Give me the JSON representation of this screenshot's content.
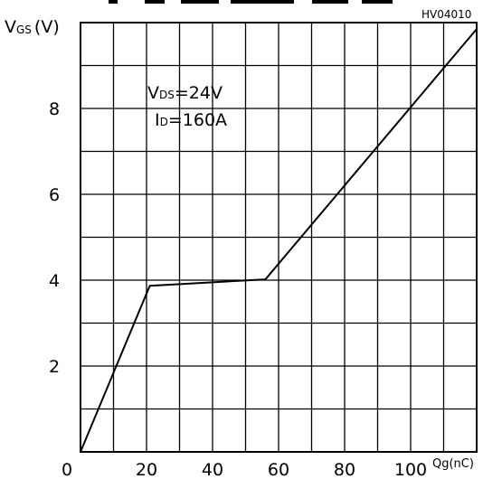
{
  "chart_data": {
    "type": "line",
    "code": "HV04010",
    "y_axis": {
      "symbol": "V",
      "subscript": "GS",
      "unit": "(V)"
    },
    "x_axis": {
      "unit": "Qg(nC)"
    },
    "xlim": [
      0,
      120
    ],
    "ylim": [
      0,
      10
    ],
    "x_grid_step": 10,
    "y_grid_step": 1,
    "x_ticks": [
      {
        "value": 0,
        "label": "0"
      },
      {
        "value": 20,
        "label": "20"
      },
      {
        "value": 40,
        "label": "40"
      },
      {
        "value": 60,
        "label": "60"
      },
      {
        "value": 80,
        "label": "80"
      },
      {
        "value": 100,
        "label": "100"
      }
    ],
    "y_ticks": [
      {
        "value": 2,
        "label": "2"
      },
      {
        "value": 4,
        "label": "4"
      },
      {
        "value": 6,
        "label": "6"
      },
      {
        "value": 8,
        "label": "8"
      }
    ],
    "annotation": {
      "line1": {
        "symbol": "V",
        "subscript": "DS",
        "value": "=24V"
      },
      "line2": {
        "symbol": "I",
        "subscript": "D",
        "value": "=160A"
      }
    },
    "series": [
      {
        "points": [
          [
            0,
            0
          ],
          [
            21,
            3.87
          ],
          [
            56,
            4.02
          ],
          [
            120,
            9.85
          ]
        ]
      }
    ],
    "grid": true
  }
}
